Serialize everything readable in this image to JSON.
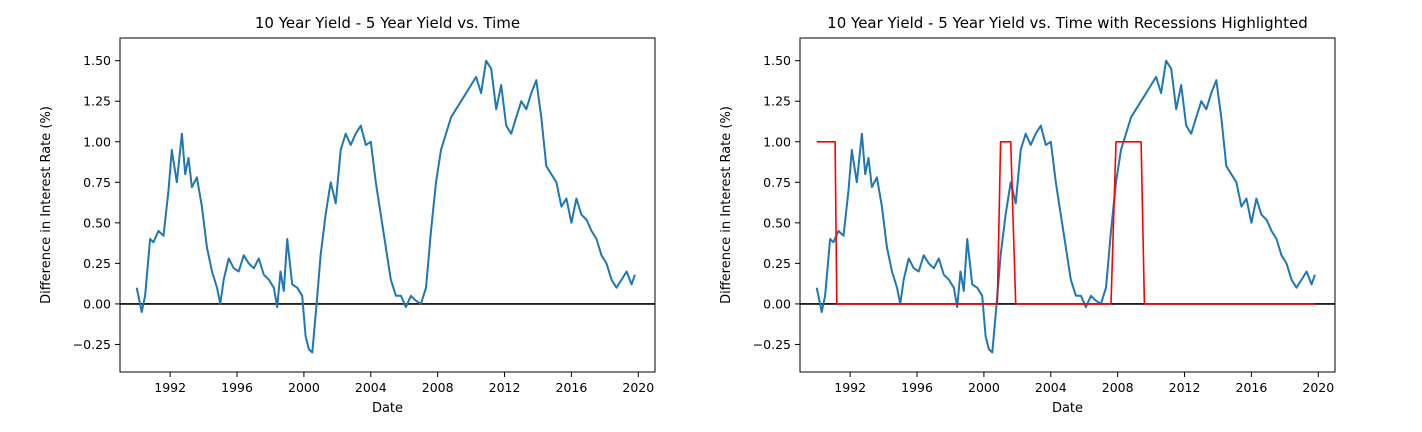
{
  "chart_data": [
    {
      "type": "line",
      "title": "10 Year Yield - 5 Year Yield vs. Time",
      "xlabel": "Date",
      "ylabel": "Difference in Interest Rate (%)",
      "xlim": [
        1989.0,
        2021.0
      ],
      "ylim": [
        -0.42,
        1.64
      ],
      "xticks": [
        1992,
        1996,
        2000,
        2004,
        2008,
        2012,
        2016,
        2020
      ],
      "xtick_labels": [
        "1992",
        "1996",
        "2000",
        "2004",
        "2008",
        "2012",
        "2016",
        "2020"
      ],
      "yticks": [
        -0.25,
        0.0,
        0.25,
        0.5,
        0.75,
        1.0,
        1.25,
        1.5
      ],
      "ytick_labels": [
        "−0.25",
        "0.00",
        "0.25",
        "0.50",
        "0.75",
        "1.00",
        "1.25",
        "1.50"
      ],
      "grid": false,
      "reference_lines": [
        {
          "y": 0,
          "color": "#000000"
        }
      ],
      "series": [
        {
          "color": "#1f77b4",
          "x": [
            1990.0,
            1990.3,
            1990.5,
            1990.8,
            1991.0,
            1991.3,
            1991.6,
            1991.9,
            1992.1,
            1992.4,
            1992.7,
            1992.9,
            1993.1,
            1993.3,
            1993.6,
            1993.9,
            1994.2,
            1994.5,
            1994.8,
            1995.0,
            1995.2,
            1995.5,
            1995.8,
            1996.1,
            1996.4,
            1996.7,
            1997.0,
            1997.3,
            1997.6,
            1997.9,
            1998.2,
            1998.4,
            1998.6,
            1998.8,
            1999.0,
            1999.3,
            1999.6,
            1999.9,
            2000.1,
            2000.3,
            2000.5,
            2000.8,
            2001.0,
            2001.3,
            2001.6,
            2001.9,
            2002.2,
            2002.5,
            2002.8,
            2003.1,
            2003.4,
            2003.7,
            2004.0,
            2004.3,
            2004.6,
            2004.9,
            2005.2,
            2005.5,
            2005.8,
            2006.1,
            2006.4,
            2006.7,
            2007.0,
            2007.3,
            2007.6,
            2007.9,
            2008.2,
            2008.5,
            2008.8,
            2009.1,
            2009.4,
            2009.7,
            2010.0,
            2010.3,
            2010.6,
            2010.9,
            2011.2,
            2011.5,
            2011.8,
            2012.1,
            2012.4,
            2012.7,
            2013.0,
            2013.3,
            2013.6,
            2013.9,
            2014.2,
            2014.5,
            2014.8,
            2015.1,
            2015.4,
            2015.7,
            2016.0,
            2016.3,
            2016.6,
            2016.9,
            2017.2,
            2017.5,
            2017.8,
            2018.1,
            2018.4,
            2018.7,
            2019.0,
            2019.3,
            2019.6,
            2019.8
          ],
          "y": [
            0.1,
            -0.05,
            0.05,
            0.4,
            0.38,
            0.45,
            0.42,
            0.7,
            0.95,
            0.75,
            1.05,
            0.8,
            0.9,
            0.72,
            0.78,
            0.6,
            0.35,
            0.2,
            0.1,
            0.0,
            0.15,
            0.28,
            0.22,
            0.2,
            0.3,
            0.25,
            0.22,
            0.28,
            0.18,
            0.15,
            0.1,
            -0.02,
            0.2,
            0.08,
            0.4,
            0.12,
            0.1,
            0.05,
            -0.2,
            -0.28,
            -0.3,
            0.05,
            0.3,
            0.55,
            0.75,
            0.62,
            0.95,
            1.05,
            0.98,
            1.05,
            1.1,
            0.98,
            1.0,
            0.75,
            0.55,
            0.35,
            0.15,
            0.05,
            0.05,
            -0.02,
            0.05,
            0.02,
            0.0,
            0.1,
            0.45,
            0.75,
            0.95,
            1.05,
            1.15,
            1.2,
            1.25,
            1.3,
            1.35,
            1.4,
            1.3,
            1.5,
            1.45,
            1.2,
            1.35,
            1.1,
            1.05,
            1.15,
            1.25,
            1.2,
            1.3,
            1.38,
            1.15,
            0.85,
            0.8,
            0.75,
            0.6,
            0.65,
            0.5,
            0.65,
            0.55,
            0.52,
            0.45,
            0.4,
            0.3,
            0.25,
            0.15,
            0.1,
            0.15,
            0.2,
            0.12,
            0.18
          ]
        }
      ]
    },
    {
      "type": "line",
      "title": "10 Year Yield - 5 Year Yield vs. Time with Recessions Highlighted",
      "xlabel": "Date",
      "ylabel": "Difference in Interest Rate (%)",
      "xlim": [
        1989.0,
        2021.0
      ],
      "ylim": [
        -0.42,
        1.64
      ],
      "xticks": [
        1992,
        1996,
        2000,
        2004,
        2008,
        2012,
        2016,
        2020
      ],
      "xtick_labels": [
        "1992",
        "1996",
        "2000",
        "2004",
        "2008",
        "2012",
        "2016",
        "2020"
      ],
      "yticks": [
        -0.25,
        0.0,
        0.25,
        0.5,
        0.75,
        1.0,
        1.25,
        1.5
      ],
      "ytick_labels": [
        "−0.25",
        "0.00",
        "0.25",
        "0.50",
        "0.75",
        "1.00",
        "1.25",
        "1.50"
      ],
      "grid": false,
      "reference_lines": [
        {
          "y": 0,
          "color": "#000000"
        }
      ],
      "series": [
        {
          "color": "#1f77b4",
          "x": [
            1990.0,
            1990.3,
            1990.5,
            1990.8,
            1991.0,
            1991.3,
            1991.6,
            1991.9,
            1992.1,
            1992.4,
            1992.7,
            1992.9,
            1993.1,
            1993.3,
            1993.6,
            1993.9,
            1994.2,
            1994.5,
            1994.8,
            1995.0,
            1995.2,
            1995.5,
            1995.8,
            1996.1,
            1996.4,
            1996.7,
            1997.0,
            1997.3,
            1997.6,
            1997.9,
            1998.2,
            1998.4,
            1998.6,
            1998.8,
            1999.0,
            1999.3,
            1999.6,
            1999.9,
            2000.1,
            2000.3,
            2000.5,
            2000.8,
            2001.0,
            2001.3,
            2001.6,
            2001.9,
            2002.2,
            2002.5,
            2002.8,
            2003.1,
            2003.4,
            2003.7,
            2004.0,
            2004.3,
            2004.6,
            2004.9,
            2005.2,
            2005.5,
            2005.8,
            2006.1,
            2006.4,
            2006.7,
            2007.0,
            2007.3,
            2007.6,
            2007.9,
            2008.2,
            2008.5,
            2008.8,
            2009.1,
            2009.4,
            2009.7,
            2010.0,
            2010.3,
            2010.6,
            2010.9,
            2011.2,
            2011.5,
            2011.8,
            2012.1,
            2012.4,
            2012.7,
            2013.0,
            2013.3,
            2013.6,
            2013.9,
            2014.2,
            2014.5,
            2014.8,
            2015.1,
            2015.4,
            2015.7,
            2016.0,
            2016.3,
            2016.6,
            2016.9,
            2017.2,
            2017.5,
            2017.8,
            2018.1,
            2018.4,
            2018.7,
            2019.0,
            2019.3,
            2019.6,
            2019.8
          ],
          "y": [
            0.1,
            -0.05,
            0.05,
            0.4,
            0.38,
            0.45,
            0.42,
            0.7,
            0.95,
            0.75,
            1.05,
            0.8,
            0.9,
            0.72,
            0.78,
            0.6,
            0.35,
            0.2,
            0.1,
            0.0,
            0.15,
            0.28,
            0.22,
            0.2,
            0.3,
            0.25,
            0.22,
            0.28,
            0.18,
            0.15,
            0.1,
            -0.02,
            0.2,
            0.08,
            0.4,
            0.12,
            0.1,
            0.05,
            -0.2,
            -0.28,
            -0.3,
            0.05,
            0.3,
            0.55,
            0.75,
            0.62,
            0.95,
            1.05,
            0.98,
            1.05,
            1.1,
            0.98,
            1.0,
            0.75,
            0.55,
            0.35,
            0.15,
            0.05,
            0.05,
            -0.02,
            0.05,
            0.02,
            0.0,
            0.1,
            0.45,
            0.75,
            0.95,
            1.05,
            1.15,
            1.2,
            1.25,
            1.3,
            1.35,
            1.4,
            1.3,
            1.5,
            1.45,
            1.2,
            1.35,
            1.1,
            1.05,
            1.15,
            1.25,
            1.2,
            1.3,
            1.38,
            1.15,
            0.85,
            0.8,
            0.75,
            0.6,
            0.65,
            0.5,
            0.65,
            0.55,
            0.52,
            0.45,
            0.4,
            0.3,
            0.25,
            0.15,
            0.1,
            0.15,
            0.2,
            0.12,
            0.18
          ]
        },
        {
          "color": "#ff0000",
          "x": [
            1990.0,
            1991.1,
            1991.2,
            2000.8,
            2001.0,
            2001.6,
            2001.9,
            2007.6,
            2007.9,
            2009.4,
            2009.6,
            2019.8
          ],
          "y": [
            1.0,
            1.0,
            0.0,
            0.0,
            1.0,
            1.0,
            0.0,
            0.0,
            1.0,
            1.0,
            0.0,
            0.0
          ]
        }
      ]
    }
  ]
}
